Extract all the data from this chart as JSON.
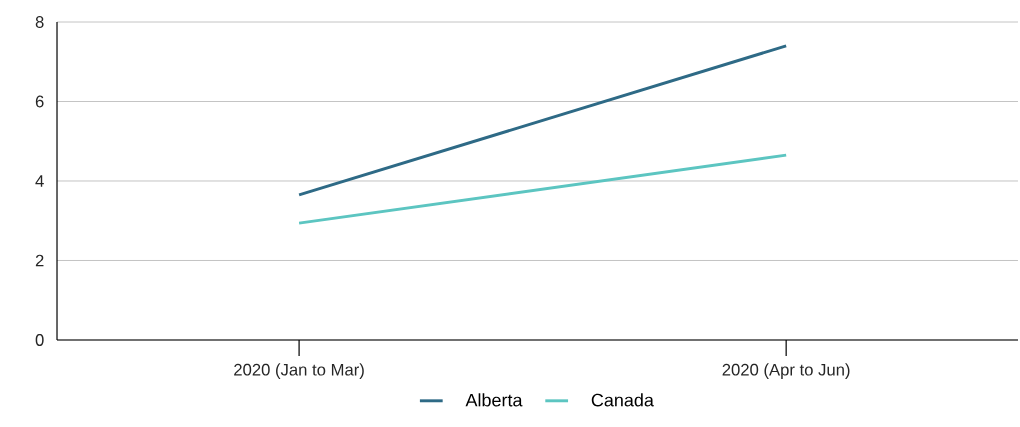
{
  "chart_data": {
    "type": "line",
    "categories": [
      "2020 (Jan to Mar)",
      "2020 (Apr to Jun)"
    ],
    "series": [
      {
        "name": "Alberta",
        "color": "#2e6a86",
        "values": [
          3.65,
          7.4
        ]
      },
      {
        "name": "Canada",
        "color": "#5cc5c1",
        "values": [
          2.94,
          4.65
        ]
      }
    ],
    "ylim": [
      0,
      8
    ],
    "yticks": [
      0,
      2,
      4,
      6,
      8
    ],
    "grid": "y",
    "legend": "bottom",
    "marker": "none",
    "line_style": "solid"
  }
}
